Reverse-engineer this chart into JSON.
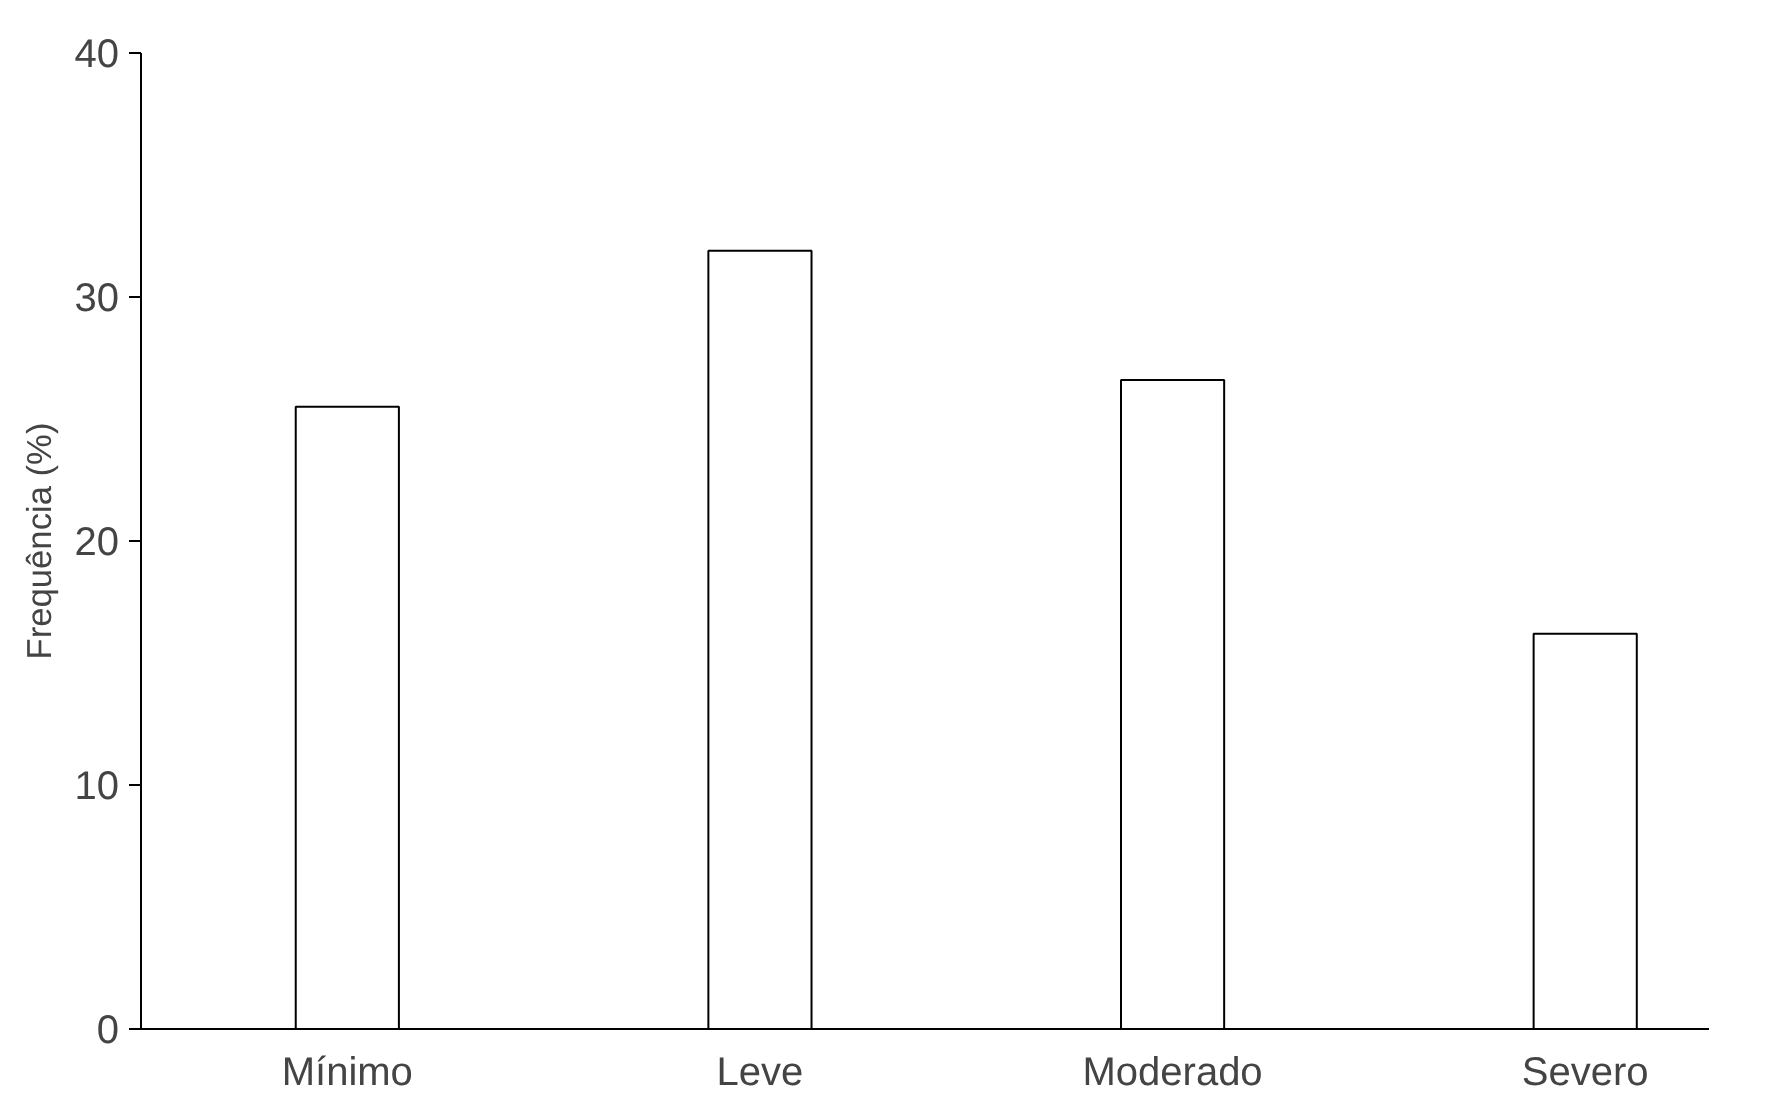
{
  "chart_data": {
    "type": "bar",
    "ylabel": "Frequência (%)",
    "categories": [
      "Mínimo",
      "Leve",
      "Moderado",
      "Severo"
    ],
    "values": [
      25.5,
      31.9,
      26.6,
      16.2
    ],
    "color": "#ffffff",
    "ylim": [
      0,
      40
    ],
    "yticks": [
      0,
      10,
      20,
      30,
      40
    ],
    "grid": false
  }
}
